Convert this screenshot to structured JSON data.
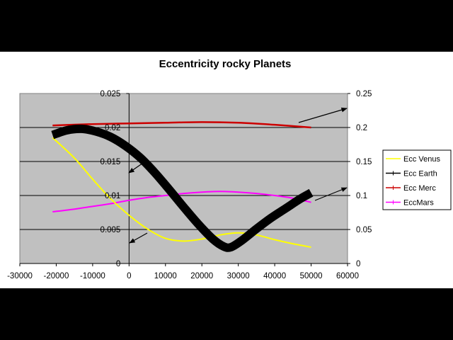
{
  "chart_data": {
    "type": "line",
    "title": "Eccentricity rocky Planets",
    "xlim": [
      -30000,
      60000
    ],
    "ylim_left": [
      0,
      0.025
    ],
    "ylim_right": [
      0,
      0.25
    ],
    "x_ticks": [
      "-30000",
      "-20000",
      "-10000",
      "0",
      "10000",
      "20000",
      "30000",
      "40000",
      "50000",
      "60000"
    ],
    "y_left_ticks": [
      "0",
      "0.005",
      "0.01",
      "0.015",
      "0.02",
      "0.025"
    ],
    "y_right_ticks": [
      "0",
      "0.05",
      "0.1",
      "0.15",
      "0.2",
      "0.25"
    ],
    "grid": true,
    "legend_position": "right",
    "series": [
      {
        "name": "Ecc Venus",
        "axis": "left",
        "color": "#ffff00",
        "x": [
          -21000,
          -15000,
          -10000,
          -5000,
          0,
          5000,
          10000,
          15000,
          20000,
          25000,
          30000,
          35000,
          40000,
          45000,
          50000
        ],
        "y": [
          0.0185,
          0.0155,
          0.0124,
          0.0095,
          0.0071,
          0.0051,
          0.0037,
          0.0033,
          0.0036,
          0.0042,
          0.0045,
          0.0042,
          0.0035,
          0.0029,
          0.0024
        ]
      },
      {
        "name": "Ecc Earth",
        "axis": "left",
        "color": "#000000",
        "x": [
          -21000,
          -17000,
          -13000,
          -9000,
          -5000,
          -1000,
          3000,
          7000,
          11000,
          15000,
          19000,
          23000,
          26000,
          28000,
          31000,
          35000,
          39000,
          43000,
          47000,
          50000
        ],
        "y": [
          0.0189,
          0.0196,
          0.0198,
          0.0194,
          0.0186,
          0.0173,
          0.0156,
          0.0134,
          0.0109,
          0.0083,
          0.0058,
          0.0036,
          0.0025,
          0.0024,
          0.0034,
          0.0051,
          0.0067,
          0.0081,
          0.0095,
          0.0104
        ]
      },
      {
        "name": "Ecc Merc",
        "axis": "right",
        "color": "#cc0000",
        "x": [
          -21000,
          -10000,
          0,
          10000,
          20000,
          30000,
          40000,
          50000
        ],
        "y": [
          0.203,
          0.205,
          0.206,
          0.207,
          0.208,
          0.207,
          0.204,
          0.2
        ]
      },
      {
        "name": "EccMars",
        "axis": "right",
        "color": "#ff00ff",
        "x": [
          -21000,
          -15000,
          -10000,
          -5000,
          0,
          5000,
          10000,
          15000,
          20000,
          25000,
          30000,
          35000,
          40000,
          45000,
          50000
        ],
        "y": [
          0.076,
          0.08,
          0.084,
          0.088,
          0.093,
          0.097,
          0.1,
          0.103,
          0.105,
          0.106,
          0.105,
          0.103,
          0.1,
          0.096,
          0.09
        ]
      }
    ]
  }
}
